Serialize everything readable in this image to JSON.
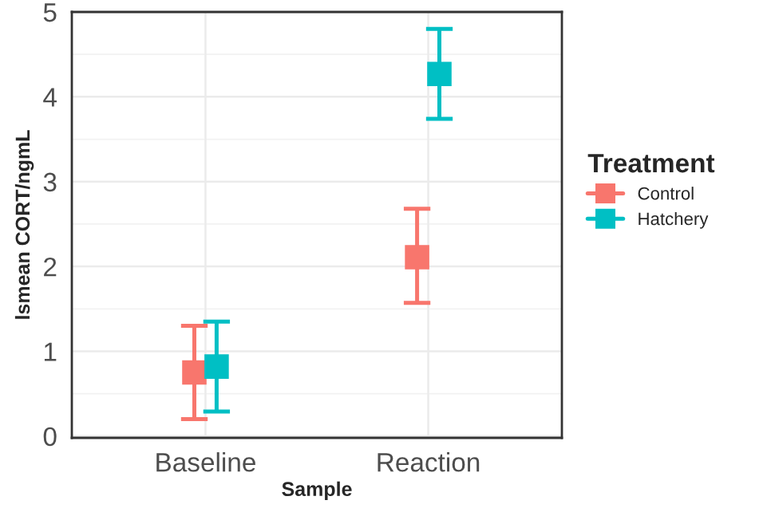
{
  "chart_data": {
    "type": "scatter",
    "xlabel": "Sample",
    "ylabel": "lsmean CORT/ngmL",
    "legend_title": "Treatment",
    "categories": [
      "Baseline",
      "Reaction"
    ],
    "series": [
      {
        "name": "Control",
        "color": "#f8766d",
        "values": [
          0.75,
          2.11
        ],
        "errors": [
          [
            0.2,
            1.3
          ],
          [
            1.57,
            2.68
          ]
        ]
      },
      {
        "name": "Hatchery",
        "color": "#00bfc4",
        "values": [
          0.82,
          4.27
        ],
        "errors": [
          [
            0.29,
            1.35
          ],
          [
            3.74,
            4.8
          ]
        ]
      }
    ],
    "ylim": [
      -0.02,
      5.0
    ],
    "yticks": [
      0,
      1,
      2,
      3,
      4,
      5
    ],
    "grid": true,
    "legend": "right",
    "marker": "square"
  }
}
